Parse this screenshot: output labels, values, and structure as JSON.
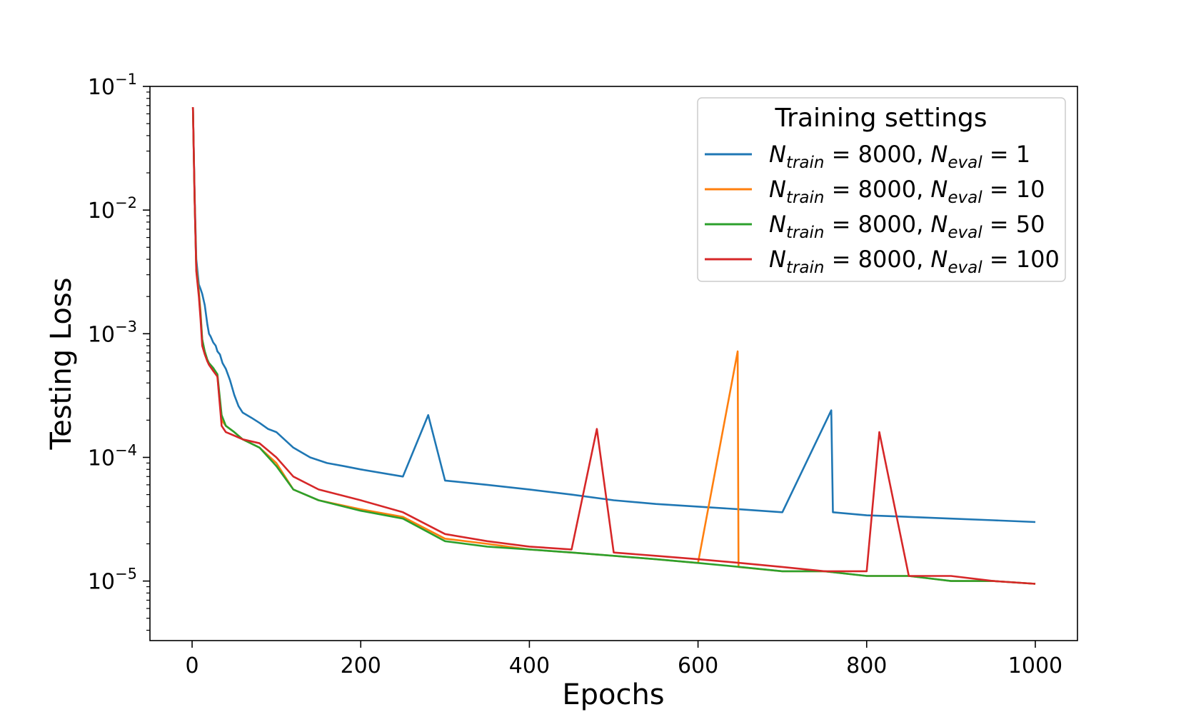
{
  "chart_data": {
    "type": "line",
    "title": "",
    "xlabel": "Epochs",
    "ylabel": "Testing Loss",
    "yscale": "log",
    "xlim": [
      -50,
      1050
    ],
    "ylim": [
      3.3e-06,
      0.1
    ],
    "xticks": [
      0,
      200,
      400,
      600,
      800,
      1000
    ],
    "xtick_labels": [
      "0",
      "200",
      "400",
      "600",
      "800",
      "1000"
    ],
    "yticks": [
      0.1,
      0.01,
      0.001,
      0.0001,
      1e-05
    ],
    "ytick_labels": [
      {
        "base": "10",
        "exp": "−1"
      },
      {
        "base": "10",
        "exp": "−2"
      },
      {
        "base": "10",
        "exp": "−3"
      },
      {
        "base": "10",
        "exp": "−4"
      },
      {
        "base": "10",
        "exp": "−5"
      }
    ],
    "grid": false,
    "legend": {
      "title": "Training settings",
      "placement": "top-right",
      "entries": [
        {
          "var1": "N",
          "sub1": "train",
          "eq1": " = 8000, ",
          "var2": "N",
          "sub2": "eval",
          "eq2": " = 1"
        },
        {
          "var1": "N",
          "sub1": "train",
          "eq1": " = 8000, ",
          "var2": "N",
          "sub2": "eval",
          "eq2": " = 10"
        },
        {
          "var1": "N",
          "sub1": "train",
          "eq1": " = 8000, ",
          "var2": "N",
          "sub2": "eval",
          "eq2": " = 50"
        },
        {
          "var1": "N",
          "sub1": "train",
          "eq1": " = 8000, ",
          "var2": "N",
          "sub2": "eval",
          "eq2": " = 100"
        }
      ]
    },
    "series": [
      {
        "name": "N_train = 8000, N_eval = 1",
        "color": "#1f77b4",
        "x": [
          1,
          3,
          5,
          8,
          10,
          12,
          15,
          18,
          20,
          22,
          25,
          28,
          30,
          33,
          36,
          40,
          45,
          50,
          55,
          60,
          70,
          80,
          90,
          100,
          120,
          140,
          160,
          180,
          200,
          250,
          280,
          300,
          350,
          400,
          450,
          500,
          550,
          600,
          650,
          700,
          758,
          760,
          800,
          850,
          900,
          950,
          1000
        ],
        "y": [
          0.068,
          0.013,
          0.004,
          0.0025,
          0.0023,
          0.0021,
          0.0017,
          0.0012,
          0.001,
          0.00095,
          0.00085,
          0.0008,
          0.00072,
          0.00068,
          0.00058,
          0.00052,
          0.00042,
          0.00032,
          0.00026,
          0.00023,
          0.00021,
          0.00019,
          0.00017,
          0.00016,
          0.00012,
          0.0001,
          9e-05,
          8.5e-05,
          8e-05,
          7e-05,
          0.00022,
          6.5e-05,
          6e-05,
          5.5e-05,
          5e-05,
          4.5e-05,
          4.2e-05,
          4e-05,
          3.8e-05,
          3.6e-05,
          0.00024,
          3.6e-05,
          3.4e-05,
          3.3e-05,
          3.2e-05,
          3.1e-05,
          3e-05
        ]
      },
      {
        "name": "N_train = 8000, N_eval = 10",
        "color": "#ff7f0e",
        "x": [
          1,
          3,
          5,
          8,
          10,
          12,
          15,
          18,
          20,
          25,
          30,
          35,
          40,
          50,
          60,
          80,
          100,
          120,
          150,
          200,
          250,
          300,
          350,
          400,
          450,
          500,
          550,
          600,
          647,
          648,
          700,
          750,
          800,
          850,
          900,
          950,
          1000
        ],
        "y": [
          0.068,
          0.012,
          0.0035,
          0.0022,
          0.0015,
          0.0009,
          0.0007,
          0.0006,
          0.00057,
          0.00052,
          0.00045,
          0.0002,
          0.00018,
          0.00016,
          0.00014,
          0.00012,
          9e-05,
          5.5e-05,
          4.5e-05,
          3.8e-05,
          3.3e-05,
          2.2e-05,
          2e-05,
          1.8e-05,
          1.7e-05,
          1.6e-05,
          1.5e-05,
          1.4e-05,
          0.00072,
          1.3e-05,
          1.2e-05,
          1.2e-05,
          1.1e-05,
          1.1e-05,
          1e-05,
          1e-05,
          9.5e-06
        ]
      },
      {
        "name": "N_train = 8000, N_eval = 50",
        "color": "#2ca02c",
        "x": [
          1,
          3,
          5,
          8,
          10,
          12,
          15,
          18,
          20,
          25,
          30,
          35,
          40,
          50,
          60,
          80,
          100,
          120,
          150,
          200,
          250,
          300,
          350,
          400,
          450,
          500,
          550,
          600,
          650,
          700,
          750,
          800,
          850,
          900,
          950,
          1000
        ],
        "y": [
          0.068,
          0.012,
          0.0033,
          0.0021,
          0.0014,
          0.0009,
          0.00072,
          0.00062,
          0.00058,
          0.00053,
          0.00047,
          0.00022,
          0.00018,
          0.00016,
          0.00014,
          0.00012,
          8.5e-05,
          5.5e-05,
          4.5e-05,
          3.7e-05,
          3.2e-05,
          2.1e-05,
          1.9e-05,
          1.8e-05,
          1.7e-05,
          1.6e-05,
          1.5e-05,
          1.4e-05,
          1.3e-05,
          1.2e-05,
          1.2e-05,
          1.1e-05,
          1.1e-05,
          1e-05,
          1e-05,
          9.5e-06
        ]
      },
      {
        "name": "N_train = 8000, N_eval = 100",
        "color": "#d62728",
        "x": [
          1,
          3,
          5,
          8,
          10,
          12,
          15,
          18,
          20,
          25,
          30,
          35,
          40,
          50,
          60,
          80,
          100,
          120,
          150,
          200,
          250,
          300,
          350,
          400,
          450,
          480,
          500,
          550,
          600,
          650,
          700,
          750,
          800,
          815,
          850,
          900,
          950,
          1000
        ],
        "y": [
          0.068,
          0.012,
          0.0032,
          0.002,
          0.0013,
          0.0008,
          0.00068,
          0.0006,
          0.00056,
          0.0005,
          0.00045,
          0.00018,
          0.00016,
          0.00015,
          0.00014,
          0.00013,
          0.0001,
          7e-05,
          5.5e-05,
          4.5e-05,
          3.6e-05,
          2.4e-05,
          2.1e-05,
          1.9e-05,
          1.8e-05,
          0.00017,
          1.7e-05,
          1.6e-05,
          1.5e-05,
          1.4e-05,
          1.3e-05,
          1.2e-05,
          1.2e-05,
          0.00016,
          1.1e-05,
          1.1e-05,
          1e-05,
          9.5e-06
        ]
      }
    ]
  }
}
